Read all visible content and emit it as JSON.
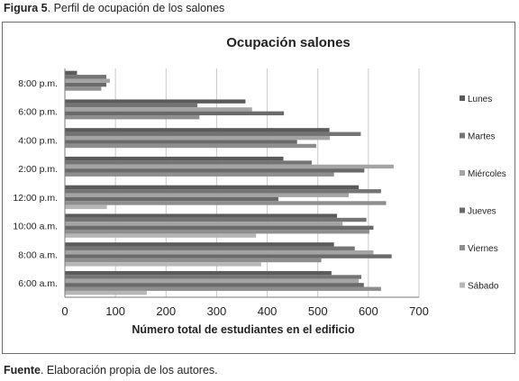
{
  "caption": {
    "label": "Figura 5",
    "text": ". Perfil de ocupación de los salones"
  },
  "source": {
    "label": "Fuente",
    "text": ". Elaboración propia de los autores."
  },
  "chart_data": {
    "type": "bar",
    "orientation": "horizontal",
    "title": "Ocupación salones",
    "xlabel": "Número total de estudiantes en el edificio",
    "ylabel": "",
    "xlim": [
      0,
      700
    ],
    "xticks": [
      0,
      100,
      200,
      300,
      400,
      500,
      600,
      700
    ],
    "categories": [
      "6:00 a.m.",
      "8:00 a.m.",
      "10:00 a.m.",
      "12:00 p.m.",
      "2:00 p.m.",
      "4:00 p.m.",
      "6:00 p.m.",
      "8:00 p.m."
    ],
    "grid": "vertical",
    "legend_position": "right",
    "series": [
      {
        "name": "Lunes",
        "color": "#5b5b5b",
        "values": [
          527,
          532,
          538,
          581,
          432,
          523,
          357,
          24
        ]
      },
      {
        "name": "Martes",
        "color": "#747474",
        "values": [
          586,
          573,
          596,
          625,
          488,
          585,
          262,
          82
        ]
      },
      {
        "name": "Miércoles",
        "color": "#a4a4a4",
        "values": [
          581,
          610,
          549,
          561,
          650,
          524,
          370,
          89
        ]
      },
      {
        "name": "Jueves",
        "color": "#6a6a6a",
        "values": [
          591,
          646,
          610,
          422,
          592,
          459,
          433,
          82
        ]
      },
      {
        "name": "Viernes",
        "color": "#8e8e8e",
        "values": [
          625,
          507,
          602,
          635,
          532,
          497,
          266,
          72
        ]
      },
      {
        "name": "Sábado",
        "color": "#b6b6b6",
        "values": [
          162,
          388,
          378,
          83,
          0,
          0,
          0,
          0
        ]
      }
    ]
  }
}
